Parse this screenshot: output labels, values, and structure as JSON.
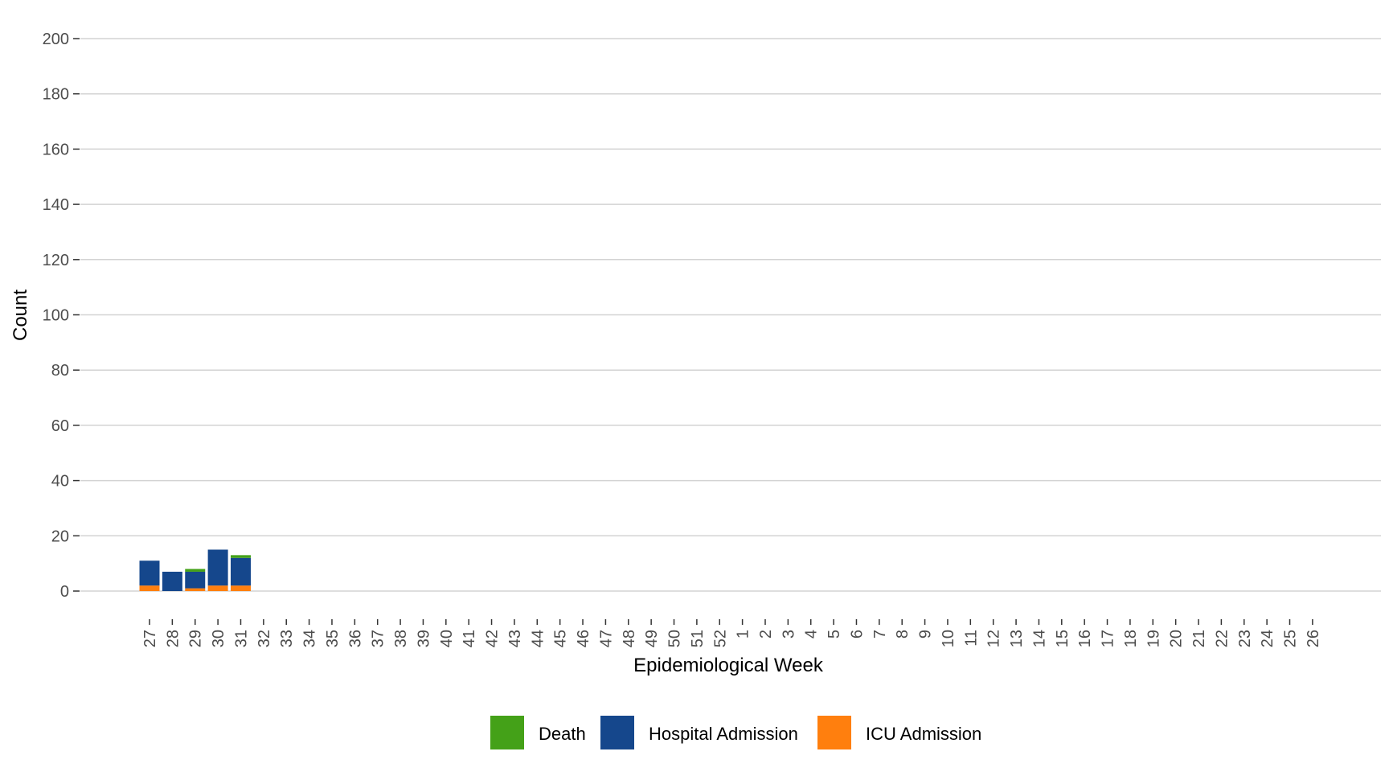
{
  "chart_data": {
    "type": "bar",
    "stacked": true,
    "title": "",
    "xlabel": "Epidemiological Week",
    "ylabel": "Count",
    "ylim": [
      0,
      200
    ],
    "yticks": [
      0,
      20,
      40,
      60,
      80,
      100,
      120,
      140,
      160,
      180,
      200
    ],
    "grid": "horizontal",
    "legend_position": "bottom",
    "categories": [
      "27",
      "28",
      "29",
      "30",
      "31",
      "32",
      "33",
      "34",
      "35",
      "36",
      "37",
      "38",
      "39",
      "40",
      "41",
      "42",
      "43",
      "44",
      "45",
      "46",
      "47",
      "48",
      "49",
      "50",
      "51",
      "52",
      "1",
      "2",
      "3",
      "4",
      "5",
      "6",
      "7",
      "8",
      "9",
      "10",
      "11",
      "12",
      "13",
      "14",
      "15",
      "16",
      "17",
      "18",
      "19",
      "20",
      "21",
      "22",
      "23",
      "24",
      "25",
      "26"
    ],
    "series": [
      {
        "name": "ICU Admission",
        "color": "#ff7f0e",
        "values": [
          2,
          0,
          1,
          2,
          2,
          0,
          0,
          0,
          0,
          0,
          0,
          0,
          0,
          0,
          0,
          0,
          0,
          0,
          0,
          0,
          0,
          0,
          0,
          0,
          0,
          0,
          0,
          0,
          0,
          0,
          0,
          0,
          0,
          0,
          0,
          0,
          0,
          0,
          0,
          0,
          0,
          0,
          0,
          0,
          0,
          0,
          0,
          0,
          0,
          0,
          0,
          0
        ]
      },
      {
        "name": "Hospital Admission",
        "color": "#15478c",
        "values": [
          9,
          7,
          6,
          13,
          10,
          0,
          0,
          0,
          0,
          0,
          0,
          0,
          0,
          0,
          0,
          0,
          0,
          0,
          0,
          0,
          0,
          0,
          0,
          0,
          0,
          0,
          0,
          0,
          0,
          0,
          0,
          0,
          0,
          0,
          0,
          0,
          0,
          0,
          0,
          0,
          0,
          0,
          0,
          0,
          0,
          0,
          0,
          0,
          0,
          0,
          0,
          0
        ]
      },
      {
        "name": "Death",
        "color": "#44a118",
        "values": [
          0,
          0,
          1,
          0,
          1,
          0,
          0,
          0,
          0,
          0,
          0,
          0,
          0,
          0,
          0,
          0,
          0,
          0,
          0,
          0,
          0,
          0,
          0,
          0,
          0,
          0,
          0,
          0,
          0,
          0,
          0,
          0,
          0,
          0,
          0,
          0,
          0,
          0,
          0,
          0,
          0,
          0,
          0,
          0,
          0,
          0,
          0,
          0,
          0,
          0,
          0,
          0
        ]
      }
    ],
    "legend_order": [
      "Death",
      "Hospital Admission",
      "ICU Admission"
    ]
  }
}
